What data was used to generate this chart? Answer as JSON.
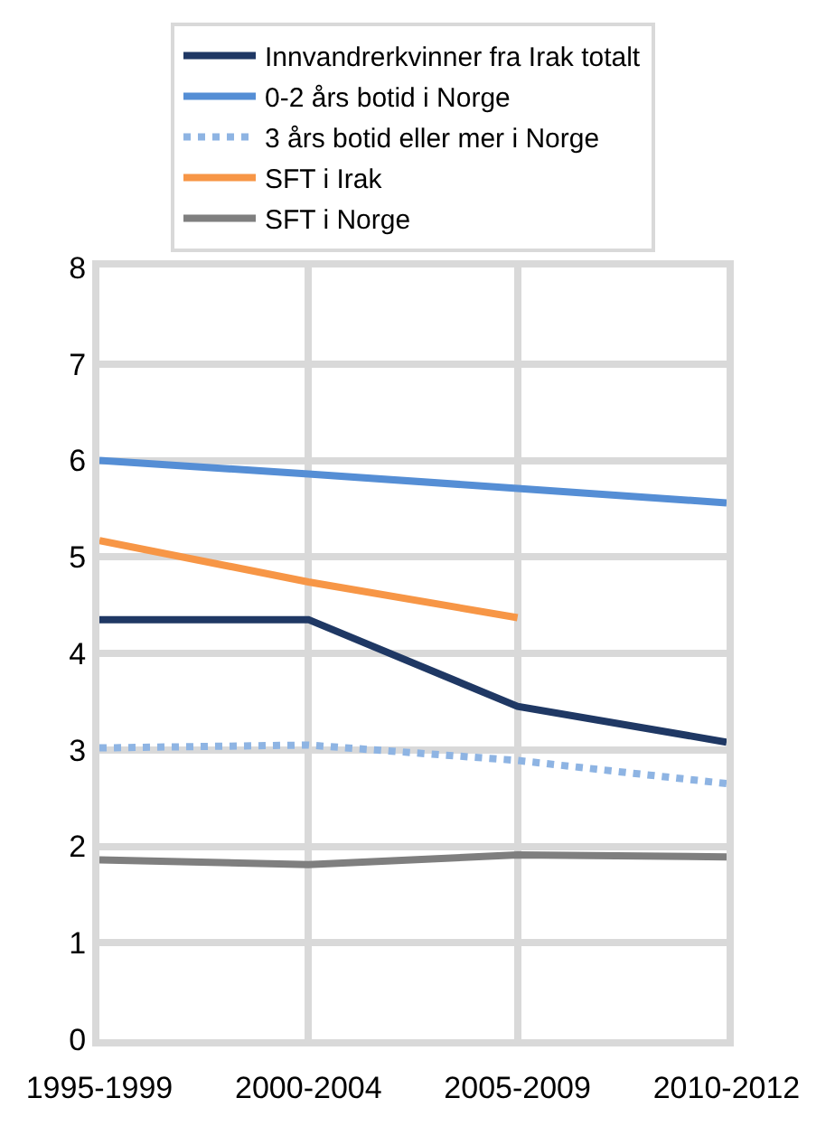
{
  "chart_data": {
    "type": "line",
    "categories": [
      "1995-1999",
      "2000-2004",
      "2005-2009",
      "2010-2012"
    ],
    "series": [
      {
        "name": "Innvandrerkvinner fra Irak totalt",
        "color": "#1f3864",
        "values": [
          4.35,
          4.35,
          3.45,
          3.08
        ]
      },
      {
        "name": "0-2 års botid i Norge",
        "color": "#558ed5",
        "values": [
          6.0,
          5.86,
          5.71,
          5.56
        ]
      },
      {
        "name": "3 års botid eller mer i Norge",
        "color": "#8eb4e3",
        "line_style": "dotted",
        "values": [
          3.02,
          3.05,
          2.89,
          2.65
        ]
      },
      {
        "name": "SFT i Irak",
        "color": "#f79646",
        "values": [
          5.17,
          4.74,
          4.37,
          null
        ]
      },
      {
        "name": "SFT i Norge",
        "color": "#7f7f7f",
        "values": [
          1.86,
          1.81,
          1.91,
          1.89
        ]
      }
    ],
    "ylim": [
      0,
      8
    ],
    "yticks": [
      0,
      1,
      2,
      3,
      4,
      5,
      6,
      7,
      8
    ],
    "grid": true,
    "legend": "top",
    "line_style": "solid",
    "marker": "none"
  }
}
